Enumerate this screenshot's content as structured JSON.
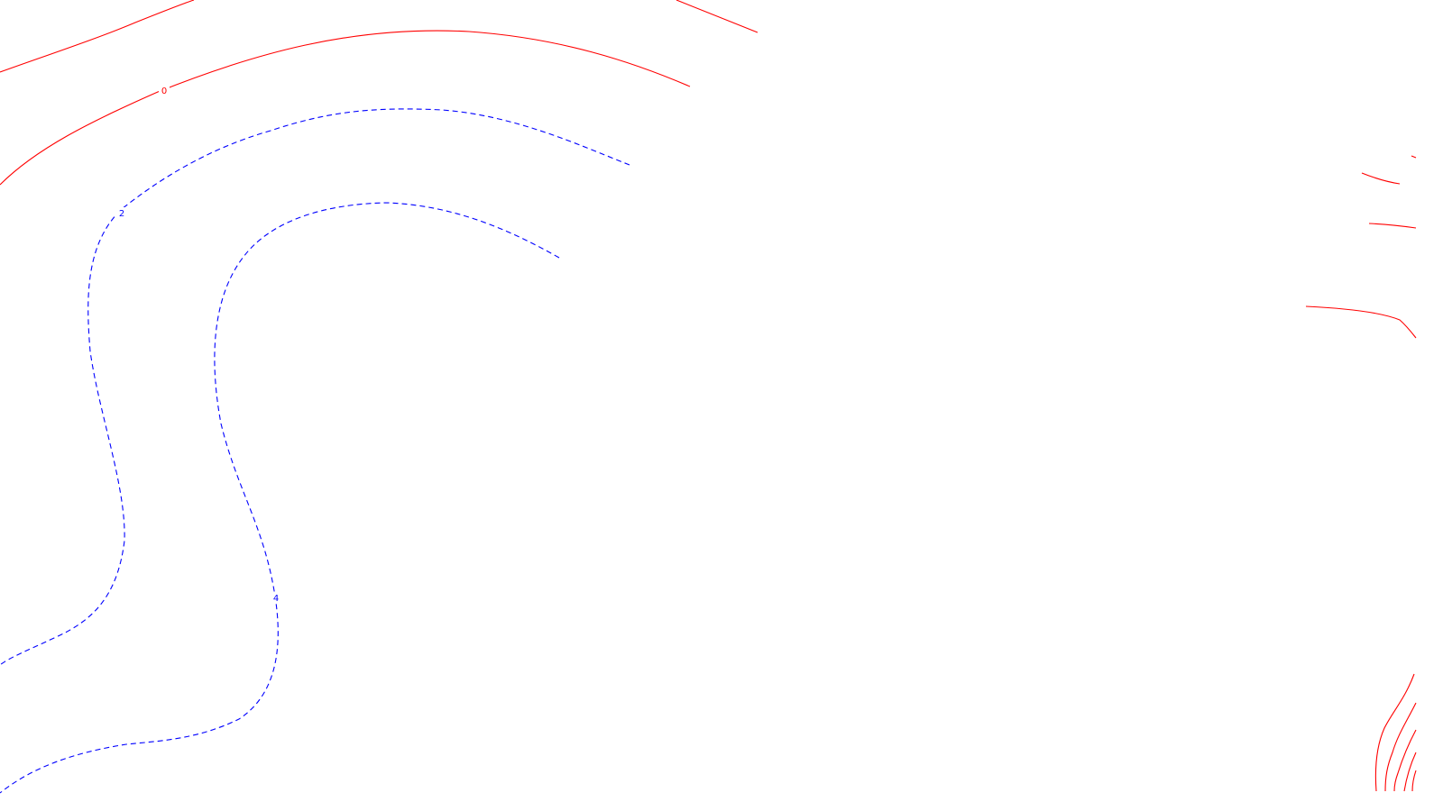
{
  "chart_data": {
    "type": "contour",
    "title": "",
    "xlabel": "",
    "ylabel": "",
    "grid": false,
    "legend": false,
    "colors": {
      "positive": "#ff0000",
      "negative": "#0000ff",
      "background": "#ffffff"
    },
    "line_styles": {
      "positive": "solid",
      "negative": "dashed"
    },
    "contour_labels": [
      "0",
      "2",
      "4"
    ]
  }
}
